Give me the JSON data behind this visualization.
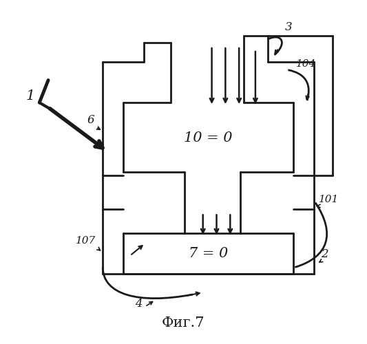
{
  "title": "Фиг.7",
  "background_color": "#ffffff",
  "line_color": "#1a1a1a",
  "lw": 2.0
}
